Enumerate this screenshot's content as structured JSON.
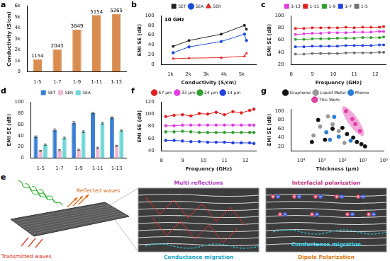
{
  "chart_data": [
    {
      "panel": "a",
      "type": "bar",
      "categories": [
        "1-5",
        "1-7",
        "1-9",
        "1-11",
        "1-13"
      ],
      "values": [
        1154,
        2043,
        3849,
        5154,
        5265
      ],
      "color": "#d98c4e",
      "data_labels": true,
      "y_label": "Conductivity (S/cm)",
      "ylim": [
        0,
        6000
      ],
      "yticks": [
        0,
        {
          "value": 1000,
          "label": "1k"
        },
        {
          "value": 2000,
          "label": "2k"
        },
        {
          "value": 3000,
          "label": "3k"
        },
        {
          "value": 4000,
          "label": "4k"
        },
        {
          "value": 5000,
          "label": "5k"
        },
        {
          "value": 6000,
          "label": "6k"
        }
      ]
    },
    {
      "panel": "b",
      "type": "line",
      "x": [
        1154,
        2043,
        3849,
        5154,
        5265
      ],
      "series": [
        {
          "name": "SET",
          "color": "#222222",
          "marker": "square",
          "values": [
            37,
            49,
            62,
            80,
            72
          ]
        },
        {
          "name": "SEA",
          "color": "#1f4fd8",
          "marker": "circle",
          "values": [
            24,
            36,
            47,
            62,
            49
          ]
        },
        {
          "name": "SER",
          "color": "#e0302a",
          "marker": "triangle",
          "values": [
            12,
            13,
            14,
            17,
            23
          ]
        }
      ],
      "annotation": "10 GHz",
      "x_label": "Conductivity (S/cm)",
      "y_label": "EMI SE (dB)",
      "xlim": [
        500,
        5800
      ],
      "xticks": [
        {
          "value": 1000,
          "label": "1k"
        },
        {
          "value": 2000,
          "label": "2k"
        },
        {
          "value": 3000,
          "label": "3k"
        },
        {
          "value": 4000,
          "label": "4k"
        },
        {
          "value": 5000,
          "label": "5k"
        }
      ],
      "ylim": [
        0,
        100
      ],
      "yticks": [
        0,
        20,
        40,
        60,
        80,
        100
      ],
      "legend": "top"
    },
    {
      "panel": "c",
      "type": "line",
      "x": [
        8.2,
        8.6,
        9.0,
        9.4,
        9.8,
        10.2,
        10.6,
        11.0,
        11.4,
        11.8,
        12.2,
        12.4
      ],
      "series": [
        {
          "name": "1-13",
          "color": "#e03ce0",
          "marker": "square",
          "values": [
            69,
            70,
            71,
            71,
            72,
            72,
            72,
            73,
            73,
            73,
            74,
            74
          ]
        },
        {
          "name": "1-11",
          "color": "#e02020",
          "marker": "square",
          "values": [
            79,
            79,
            80,
            80,
            80,
            80,
            81,
            80,
            81,
            81,
            81,
            82
          ]
        },
        {
          "name": "1-9",
          "color": "#30a030",
          "marker": "square",
          "values": [
            61,
            61,
            62,
            62,
            62,
            63,
            63,
            63,
            64,
            64,
            64,
            65
          ]
        },
        {
          "name": "1-7",
          "color": "#2040e0",
          "marker": "square",
          "values": [
            49,
            49,
            50,
            50,
            50,
            50,
            51,
            51,
            51,
            51,
            52,
            52
          ]
        },
        {
          "name": "1-5",
          "color": "#707070",
          "marker": "square",
          "values": [
            37,
            37,
            38,
            38,
            38,
            38,
            39,
            39,
            39,
            39,
            40,
            40
          ]
        }
      ],
      "x_label": "Frequency (GHz)",
      "y_label": "EMI SE (dB)",
      "xlim": [
        8,
        12.5
      ],
      "xticks": [
        8,
        9,
        10,
        11,
        12
      ],
      "ylim": [
        20,
        100
      ],
      "yticks": [
        20,
        40,
        60,
        80,
        100
      ],
      "legend": "top"
    },
    {
      "panel": "d",
      "type": "bar",
      "categories": [
        "1-5",
        "1-7",
        "1-9",
        "1-11",
        "1-13"
      ],
      "series": [
        {
          "name": "SET",
          "color": "#3a7fd5",
          "values": [
            38,
            50,
            63,
            80,
            72
          ],
          "error": [
            1.5,
            2,
            2,
            1.5,
            1.5
          ]
        },
        {
          "name": "SER",
          "color": "#f0b8d0",
          "values": [
            13,
            14,
            15,
            18,
            22
          ],
          "error": [
            1,
            1,
            1,
            1.5,
            1
          ]
        },
        {
          "name": "SEA",
          "color": "#6fd6d6",
          "values": [
            24,
            36,
            47,
            62,
            49
          ],
          "error": [
            1,
            1.5,
            1.5,
            1.5,
            1
          ]
        }
      ],
      "y_label": "EMI SE (dB)",
      "ylim": [
        0,
        100
      ],
      "yticks": [
        0,
        20,
        40,
        60,
        80,
        100
      ],
      "legend": "top"
    },
    {
      "panel": "f",
      "type": "line",
      "x": [
        8.2,
        8.6,
        9.0,
        9.4,
        9.8,
        10.2,
        10.6,
        11.0,
        11.4,
        11.8,
        12.2,
        12.4
      ],
      "series": [
        {
          "name": "67 μm",
          "color": "#e02020",
          "marker": "circle",
          "values": [
            96,
            98,
            99,
            97,
            101,
            100,
            103,
            99,
            104,
            102,
            106,
            108
          ]
        },
        {
          "name": "33 μm",
          "color": "#e03ce0",
          "marker": "circle",
          "values": [
            81,
            81,
            82,
            82,
            82,
            82,
            82,
            82,
            82,
            82,
            82,
            82
          ]
        },
        {
          "name": "24 μm",
          "color": "#30a030",
          "marker": "circle",
          "values": [
            71,
            71,
            72,
            71,
            70,
            70,
            70,
            70,
            70,
            70,
            70,
            70
          ]
        },
        {
          "name": "14 μm",
          "color": "#2040e0",
          "marker": "circle",
          "values": [
            57,
            57,
            56,
            55,
            55,
            54,
            54,
            54,
            53,
            53,
            53,
            52
          ]
        }
      ],
      "x_label": "Frequency (GHz)",
      "y_label": "EMI SE (dB)",
      "xlim": [
        8,
        12.5
      ],
      "xticks": [
        8,
        9,
        10,
        11,
        12
      ],
      "ylim": [
        40,
        120
      ],
      "yticks": [
        40,
        60,
        80,
        100,
        120
      ],
      "legend": "top"
    },
    {
      "panel": "g",
      "type": "scatter",
      "log": "x",
      "series": [
        {
          "name": "Graphene",
          "color": "#111111",
          "marker": "circle",
          "x": [
            3000,
            1500,
            700,
            300,
            100,
            60,
            30,
            20,
            12,
            8
          ],
          "values": [
            30,
            80,
            35,
            60,
            62,
            48,
            40,
            30,
            25,
            20
          ]
        },
        {
          "name": "Liquid Metal",
          "color": "#999999",
          "marker": "circle",
          "x": [
            2500,
            1200,
            500,
            300,
            150,
            80
          ],
          "values": [
            45,
            65,
            88,
            70,
            55,
            28
          ]
        },
        {
          "name": "Mxene",
          "color": "#2a7fd4",
          "marker": "circle",
          "x": [
            600,
            400,
            250,
            150,
            40
          ],
          "values": [
            52,
            35,
            87,
            42,
            33
          ]
        },
        {
          "name": "This Work",
          "color": "#e040a0",
          "marker": "circle",
          "x": [
            67,
            33,
            24,
            14
          ],
          "values": [
            100,
            82,
            71,
            55
          ]
        }
      ],
      "x_label": "Thickness (μm)",
      "y_label": "EMI SE (dB)",
      "xlim": [
        30000,
        1
      ],
      "xticks": [
        {
          "value": 10000,
          "label": "10⁴"
        },
        {
          "value": 1000,
          "label": "10³"
        },
        {
          "value": 100,
          "label": "10²"
        },
        {
          "value": 10,
          "label": "10¹"
        },
        {
          "value": 1,
          "label": "10⁰"
        }
      ],
      "ylim": [
        10,
        105
      ],
      "yticks": [
        20,
        40,
        60,
        80,
        100
      ],
      "legend": "top"
    }
  ],
  "diagram": {
    "panel": "e",
    "left": [
      "Reflected waves",
      "Transmitted waves"
    ],
    "middle": [
      "Multi reflections",
      "Conductance migration"
    ],
    "right": [
      "Interfacial polarization",
      "Conductance migration",
      "Dipole Polarization"
    ]
  }
}
